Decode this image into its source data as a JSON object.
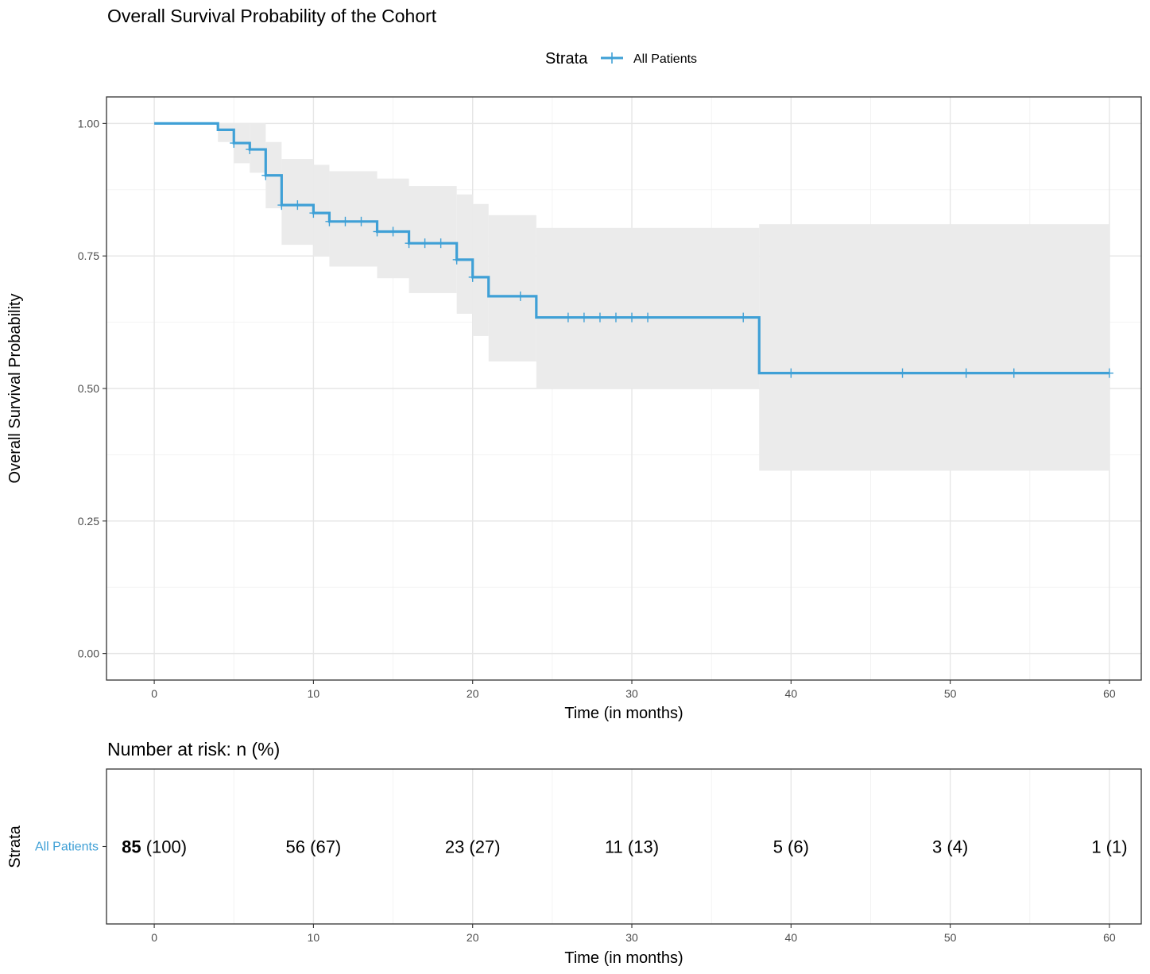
{
  "chart_data": [
    {
      "type": "line",
      "subtype": "kaplan-meier",
      "title": "Overall Survival Probability of the Cohort",
      "xlabel": "Time (in months)",
      "ylabel": "Overall Survival Probability",
      "xlim": [
        -3,
        62
      ],
      "ylim": [
        -0.05,
        1.05
      ],
      "x_ticks": [
        0,
        10,
        20,
        30,
        40,
        50,
        60
      ],
      "y_ticks": [
        0,
        0.25,
        0.5,
        0.75,
        1.0
      ],
      "x_tick_labels": [
        "0",
        "10",
        "20",
        "30",
        "40",
        "50",
        "60"
      ],
      "y_tick_labels": [
        "0.00",
        "0.25",
        "0.50",
        "0.75",
        "1.00"
      ],
      "grid": true,
      "legend": {
        "title": "Strata",
        "position": "top",
        "entries": [
          "All Patients"
        ]
      },
      "series": [
        {
          "name": "All Patients",
          "color": "#3FA0D6",
          "ci_color": "#EBEBEB",
          "steps": [
            {
              "x": 0,
              "y": 1.0,
              "lower": 1.0,
              "upper": 1.0
            },
            {
              "x": 4,
              "y": 0.988,
              "lower": 0.965,
              "upper": 1.0
            },
            {
              "x": 5,
              "y": 0.963,
              "lower": 0.925,
              "upper": 1.0
            },
            {
              "x": 6,
              "y": 0.951,
              "lower": 0.907,
              "upper": 1.0
            },
            {
              "x": 7,
              "y": 0.902,
              "lower": 0.84,
              "upper": 0.965
            },
            {
              "x": 8,
              "y": 0.846,
              "lower": 0.771,
              "upper": 0.933
            },
            {
              "x": 10,
              "y": 0.831,
              "lower": 0.749,
              "upper": 0.922
            },
            {
              "x": 11,
              "y": 0.815,
              "lower": 0.73,
              "upper": 0.91
            },
            {
              "x": 14,
              "y": 0.796,
              "lower": 0.708,
              "upper": 0.896
            },
            {
              "x": 16,
              "y": 0.774,
              "lower": 0.68,
              "upper": 0.882
            },
            {
              "x": 19,
              "y": 0.743,
              "lower": 0.641,
              "upper": 0.866
            },
            {
              "x": 20,
              "y": 0.71,
              "lower": 0.599,
              "upper": 0.848
            },
            {
              "x": 21,
              "y": 0.674,
              "lower": 0.551,
              "upper": 0.827
            },
            {
              "x": 24,
              "y": 0.634,
              "lower": 0.5,
              "upper": 0.803
            },
            {
              "x": 38,
              "y": 0.529,
              "lower": 0.345,
              "upper": 0.81
            }
          ],
          "end_x": 60,
          "censor_times": [
            5,
            6,
            7,
            8,
            9,
            10,
            11,
            12,
            13,
            14,
            15,
            16,
            17,
            18,
            19,
            20,
            23,
            26,
            27,
            28,
            29,
            30,
            31,
            37,
            40,
            47,
            51,
            54,
            60
          ]
        }
      ]
    },
    {
      "type": "table",
      "title": "Number at risk: n (%)",
      "xlabel": "Time (in months)",
      "ylabel": "Strata",
      "xlim": [
        -3,
        62
      ],
      "x_ticks": [
        0,
        10,
        20,
        30,
        40,
        50,
        60
      ],
      "x_tick_labels": [
        "0",
        "10",
        "20",
        "30",
        "40",
        "50",
        "60"
      ],
      "grid": true,
      "rows": [
        {
          "name": "All Patients",
          "color": "#3FA0D6",
          "times": [
            0,
            10,
            20,
            30,
            40,
            50,
            60
          ],
          "counts": [
            "85",
            "56",
            "23",
            "11",
            "5",
            "3",
            "1"
          ],
          "percents": [
            "(100)",
            "(67)",
            "(27)",
            "(13)",
            "(6)",
            "(4)",
            "(1)"
          ]
        }
      ]
    }
  ]
}
